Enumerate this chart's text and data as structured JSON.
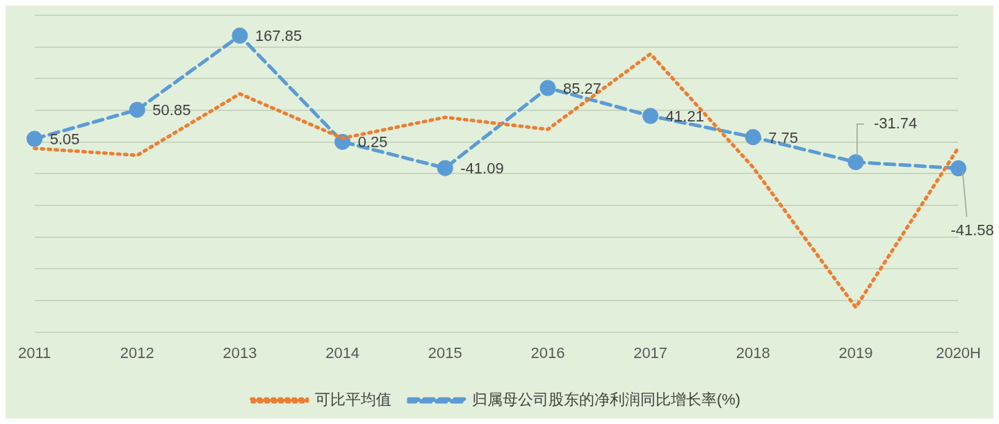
{
  "chart_data": {
    "type": "line",
    "categories": [
      "2011",
      "2012",
      "2013",
      "2014",
      "2015",
      "2016",
      "2017",
      "2018",
      "2019",
      "2020H"
    ],
    "series": [
      {
        "name": "归属母公司股东的净利润同比增长率(%)",
        "color": "#5b9bd5",
        "line_style": "dashed",
        "marker": "circle",
        "values": [
          5.05,
          50.85,
          167.85,
          0.25,
          -41.09,
          85.27,
          41.21,
          7.75,
          -31.74,
          -41.58
        ],
        "value_labels": [
          "5.05",
          "50.85",
          "167.85",
          "0.25",
          "-41.09",
          "85.27",
          "41.21",
          "7.75",
          "-31.74",
          "-41.58"
        ]
      },
      {
        "name": "可比平均值",
        "color": "#ed7d31",
        "line_style": "dotted",
        "marker": "none",
        "values": [
          -10,
          -21,
          76,
          6,
          39,
          20,
          139,
          -40,
          -261,
          -9
        ]
      }
    ],
    "ylim": [
      -300,
      200
    ],
    "yticks": [
      {
        "value": -300,
        "label": null
      },
      {
        "value": -250,
        "label": null
      },
      {
        "value": -200,
        "label": null
      },
      {
        "value": -150,
        "label": null
      },
      {
        "value": -100,
        "label": null
      },
      {
        "value": -50,
        "label": null
      },
      {
        "value": 0,
        "label": null
      },
      {
        "value": 50,
        "label": null
      },
      {
        "value": 100,
        "label": null
      },
      {
        "value": 150,
        "label": null
      },
      {
        "value": 200,
        "label": null
      }
    ],
    "grid": "y",
    "legend": "bottom",
    "tick_labels": "x"
  }
}
